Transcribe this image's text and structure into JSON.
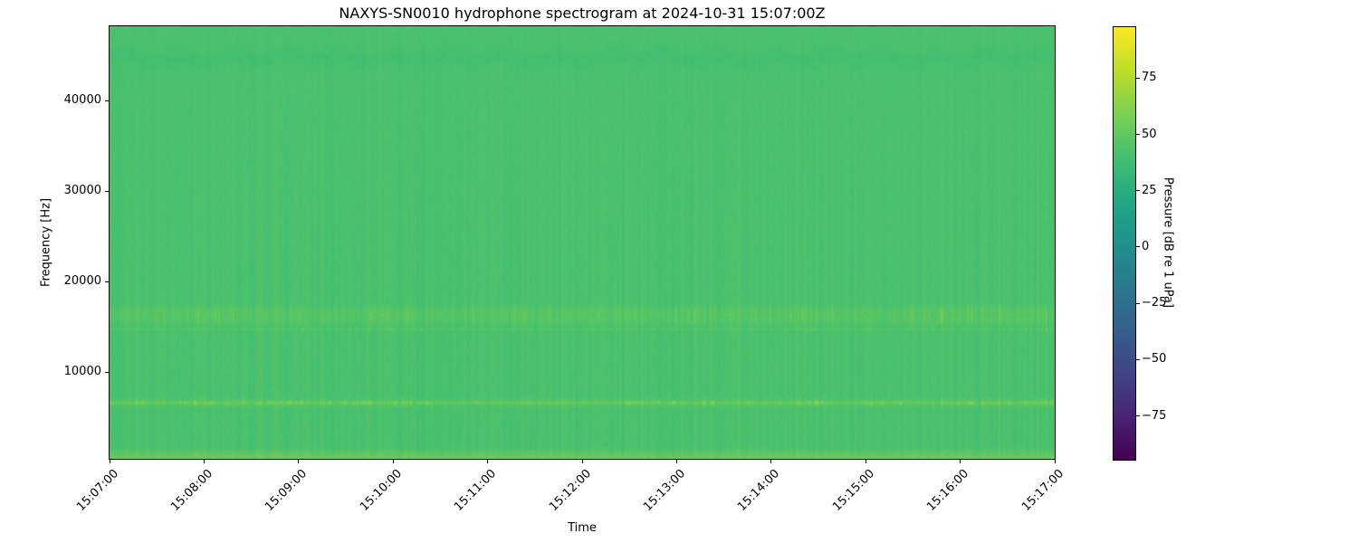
{
  "chart_data": {
    "type": "heatmap",
    "title": "NAXYS-SN0010 hydrophone spectrogram at 2024-10-31 15:07:00Z",
    "xlabel": "Time",
    "ylabel": "Frequency [Hz]",
    "x_ticks": [
      "15:07:00",
      "15:08:00",
      "15:09:00",
      "15:10:00",
      "15:11:00",
      "15:12:00",
      "15:13:00",
      "15:14:00",
      "15:15:00",
      "15:16:00",
      "15:17:00"
    ],
    "x_tick_rotation_deg": 45,
    "y_ticks": [
      10000,
      20000,
      30000,
      40000
    ],
    "ylim_hz": [
      400,
      48200
    ],
    "grid": false,
    "legend": "none",
    "colormap": {
      "name": "viridis",
      "stops": [
        "#440154",
        "#482475",
        "#414487",
        "#355f8d",
        "#2a788e",
        "#21918c",
        "#22a884",
        "#44bf70",
        "#7ad151",
        "#bddf26",
        "#fde725"
      ]
    },
    "colorbar": {
      "label": "Pressure [dB re 1 uPa]",
      "ticks": [
        75,
        50,
        25,
        0,
        -25,
        -50,
        -75
      ],
      "vmin": -94,
      "vmax": 98
    },
    "spectrogram_model": {
      "background_level_db": 42.5,
      "pixel_noise_db": 1.1,
      "vertical_striation_db": 1.6,
      "impulse_probability": 0.035,
      "impulse_max_extra_db": 6.5,
      "bands": [
        {
          "name": "low-frequency-strip",
          "f_low_hz": 400,
          "f_high_hz": 1600,
          "extra_db": 13,
          "burst_db": 3,
          "shape": "ramp-down"
        },
        {
          "name": "tonal-6500hz-core",
          "f_low_hz": 6300,
          "f_high_hz": 6900,
          "extra_db": 7,
          "burst_db": 15,
          "shape": "window"
        },
        {
          "name": "tonal-6500hz-halo",
          "f_low_hz": 5900,
          "f_high_hz": 7300,
          "extra_db": 2,
          "burst_db": 6,
          "shape": "window"
        },
        {
          "name": "faint-line-14700hz",
          "f_low_hz": 14450,
          "f_high_hz": 14950,
          "extra_db": 3,
          "burst_db": 7,
          "shape": "window"
        },
        {
          "name": "speckle-band-15-17khz",
          "f_low_hz": 14900,
          "f_high_hz": 17600,
          "extra_db": 4,
          "burst_db": 16,
          "shape": "speckle"
        }
      ],
      "dark_band": {
        "name": "wavy-dark-band-44-46khz",
        "f_low_hz": 43600,
        "f_high_hz": 45800,
        "delta_db": -2.8,
        "wave_amplitude_hz": 350
      },
      "seed": 1337
    }
  }
}
